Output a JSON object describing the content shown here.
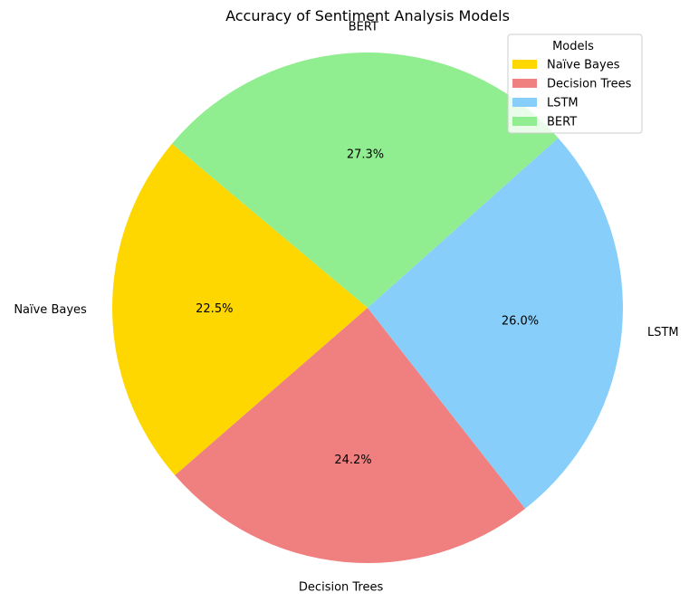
{
  "chart_data": {
    "type": "pie",
    "title": "Accuracy of Sentiment Analysis Models",
    "categories": [
      "Naïve Bayes",
      "Decision Trees",
      "LSTM",
      "BERT"
    ],
    "values": [
      22.5,
      24.2,
      26.0,
      27.3
    ],
    "percent_labels": [
      "22.5%",
      "24.2%",
      "26.0%",
      "27.3%"
    ],
    "colors": [
      "#FFD700",
      "#F08080",
      "#87CEFA",
      "#90EE90"
    ],
    "start_angle_deg": 140,
    "direction": "counterclockwise",
    "legend": {
      "title": "Models",
      "placement": "top-right",
      "entries": [
        "Naïve Bayes",
        "Decision Trees",
        "LSTM",
        "BERT"
      ]
    }
  }
}
